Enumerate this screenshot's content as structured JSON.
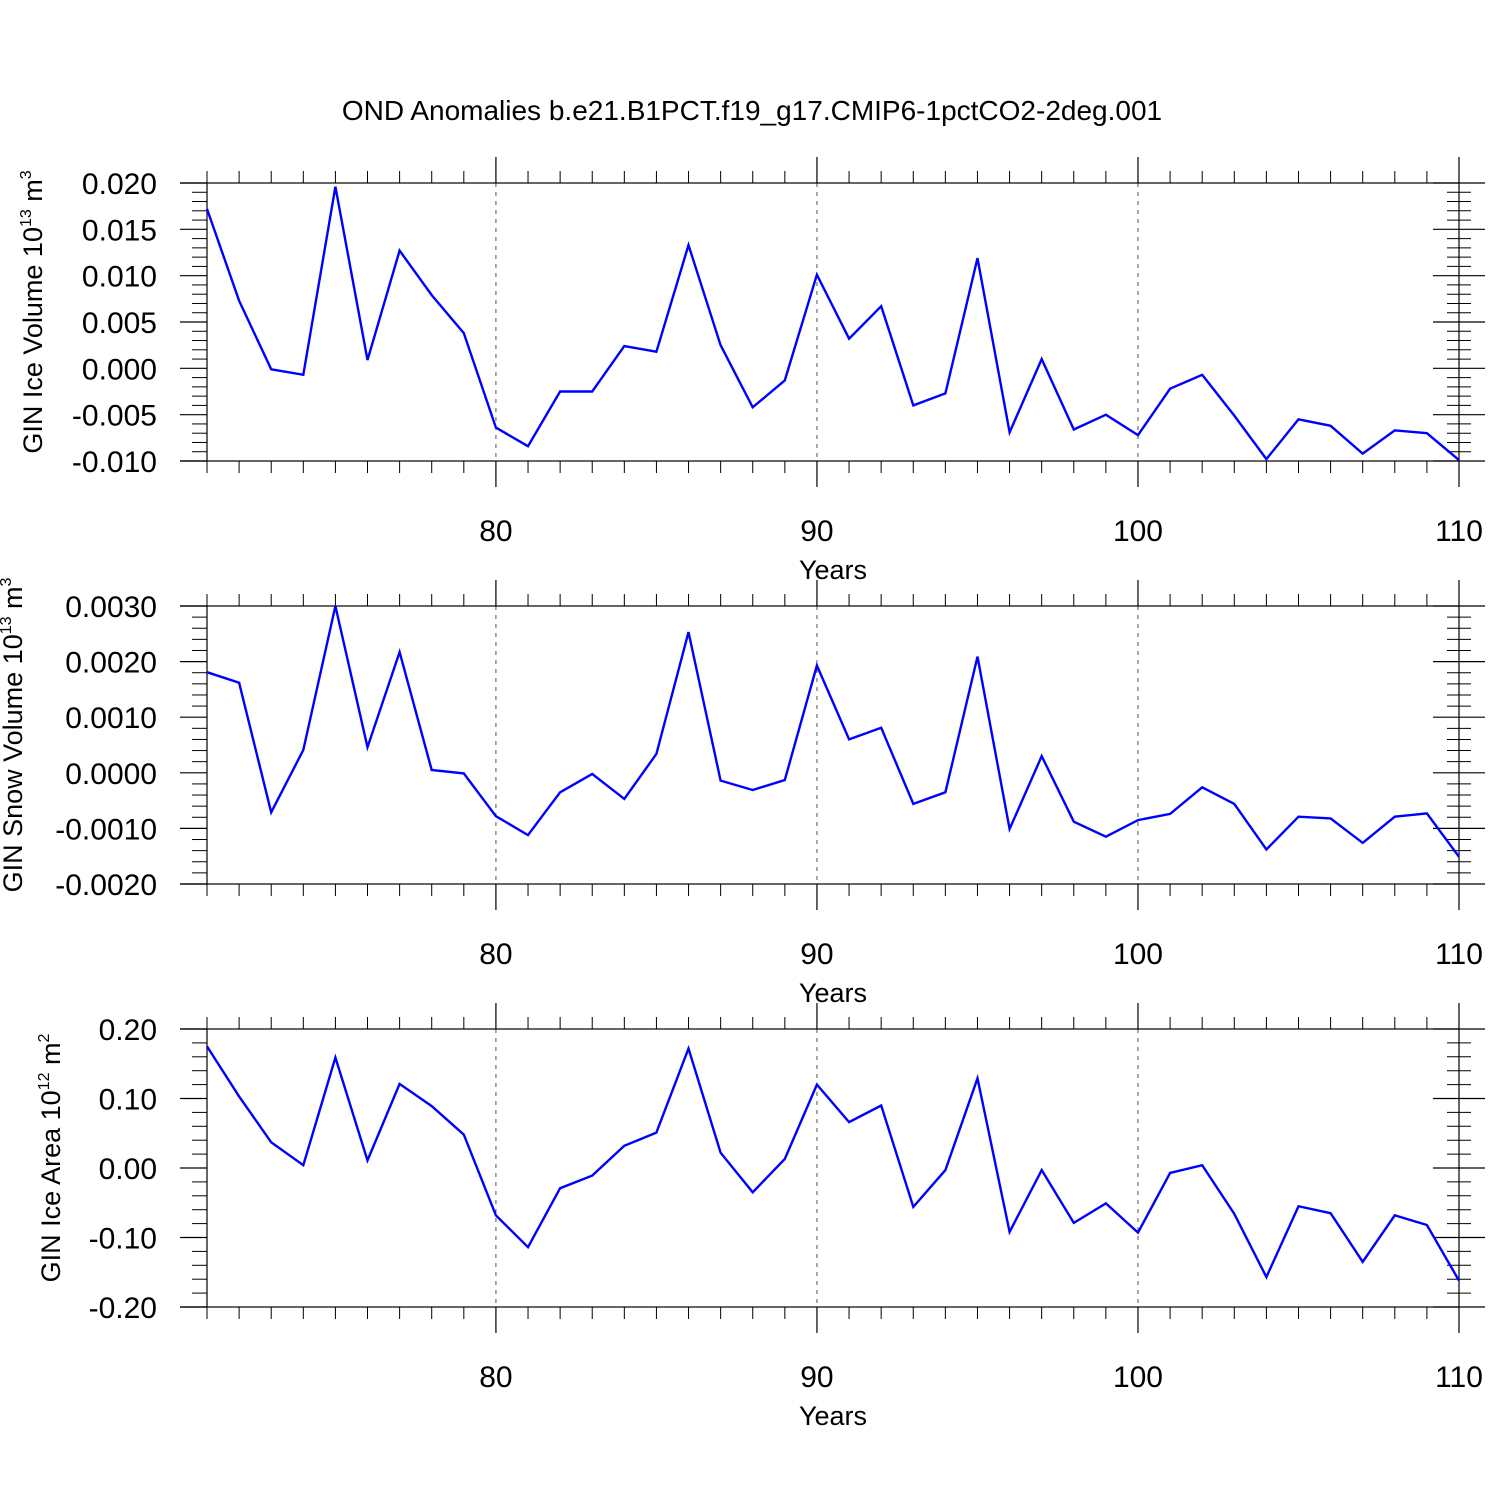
{
  "title": "OND Anomalies b.e21.B1PCT.f19_g17.CMIP6-1pctCO2-2deg.001",
  "colors": {
    "series": "#0000ff",
    "axes": "#000000",
    "background": "#ffffff"
  },
  "chart_data": [
    {
      "type": "line",
      "ylabel": {
        "text": "GIN Ice Volume 10",
        "sup1": "13",
        "unit": " m",
        "sup2": "3"
      },
      "xlabel": "Years",
      "xlim": [
        71,
        110
      ],
      "ylim": [
        -0.01,
        0.02
      ],
      "yticks": [
        -0.01,
        -0.005,
        0.0,
        0.005,
        0.01,
        0.015,
        0.02
      ],
      "ytick_labels": [
        "-0.010",
        "-0.005",
        "0.000",
        "0.005",
        "0.010",
        "0.015",
        "0.020"
      ],
      "xticks": [
        80,
        90,
        100,
        110
      ],
      "xtick_labels": [
        "80",
        "90",
        "100",
        "110"
      ],
      "grid": "dashed vertical lines at major x ticks",
      "x": [
        71,
        72,
        73,
        74,
        75,
        76,
        77,
        78,
        79,
        80,
        81,
        82,
        83,
        84,
        85,
        86,
        87,
        88,
        89,
        90,
        91,
        92,
        93,
        94,
        95,
        96,
        97,
        98,
        99,
        100,
        101,
        102,
        103,
        104,
        105,
        106,
        107,
        108,
        109,
        110
      ],
      "values": [
        0.0172,
        0.0073,
        -0.0001,
        -0.0007,
        0.0196,
        0.0009,
        0.0127,
        0.0079,
        0.0038,
        -0.0064,
        -0.0084,
        -0.0025,
        -0.0025,
        0.0024,
        0.0018,
        0.0133,
        0.0025,
        -0.0042,
        -0.0013,
        0.0101,
        0.0032,
        0.0067,
        -0.004,
        -0.0027,
        0.0119,
        -0.0069,
        0.001,
        -0.0066,
        -0.005,
        -0.0072,
        -0.0022,
        -0.0007,
        -0.0051,
        -0.0098,
        -0.0055,
        -0.0062,
        -0.0092,
        -0.0067,
        -0.007,
        -0.0099
      ]
    },
    {
      "type": "line",
      "ylabel": {
        "text": "GIN Snow Volume 10",
        "sup1": "13",
        "unit": " m",
        "sup2": "3"
      },
      "xlabel": "Years",
      "xlim": [
        71,
        110
      ],
      "ylim": [
        -0.002,
        0.003
      ],
      "yticks": [
        -0.002,
        -0.001,
        0.0,
        0.001,
        0.002,
        0.003
      ],
      "ytick_labels": [
        "-0.0020",
        "-0.0010",
        "0.0000",
        "0.0010",
        "0.0020",
        "0.0030"
      ],
      "xticks": [
        80,
        90,
        100,
        110
      ],
      "xtick_labels": [
        "80",
        "90",
        "100",
        "110"
      ],
      "grid": "dashed vertical lines at major x ticks",
      "x": [
        71,
        72,
        73,
        74,
        75,
        76,
        77,
        78,
        79,
        80,
        81,
        82,
        83,
        84,
        85,
        86,
        87,
        88,
        89,
        90,
        91,
        92,
        93,
        94,
        95,
        96,
        97,
        98,
        99,
        100,
        101,
        102,
        103,
        104,
        105,
        106,
        107,
        108,
        109,
        110
      ],
      "values": [
        0.00181,
        0.00162,
        -0.00071,
        0.00041,
        0.003,
        0.00046,
        0.00217,
        5e-05,
        -1e-05,
        -0.00078,
        -0.00112,
        -0.00035,
        -2e-05,
        -0.00047,
        0.00034,
        0.00253,
        -0.00014,
        -0.00031,
        -0.00013,
        0.00193,
        0.0006,
        0.00081,
        -0.00056,
        -0.00035,
        0.00209,
        -0.00101,
        0.0003,
        -0.00088,
        -0.00115,
        -0.00085,
        -0.00074,
        -0.00026,
        -0.00056,
        -0.00138,
        -0.00079,
        -0.00082,
        -0.00126,
        -0.00079,
        -0.00073,
        -0.00151
      ]
    },
    {
      "type": "line",
      "ylabel": {
        "text": "GIN Ice Area 10",
        "sup1": "12",
        "unit": " m",
        "sup2": "2"
      },
      "xlabel": "Years",
      "xlim": [
        71,
        110
      ],
      "ylim": [
        -0.2,
        0.2
      ],
      "yticks": [
        -0.2,
        -0.1,
        0.0,
        0.1,
        0.2
      ],
      "ytick_labels": [
        "-0.20",
        "-0.10",
        "0.00",
        "0.10",
        "0.20"
      ],
      "xticks": [
        80,
        90,
        100,
        110
      ],
      "xtick_labels": [
        "80",
        "90",
        "100",
        "110"
      ],
      "grid": "dashed vertical lines at major x ticks",
      "x": [
        71,
        72,
        73,
        74,
        75,
        76,
        77,
        78,
        79,
        80,
        81,
        82,
        83,
        84,
        85,
        86,
        87,
        88,
        89,
        90,
        91,
        92,
        93,
        94,
        95,
        96,
        97,
        98,
        99,
        100,
        101,
        102,
        103,
        104,
        105,
        106,
        107,
        108,
        109,
        110
      ],
      "values": [
        0.175,
        0.103,
        0.037,
        0.004,
        0.159,
        0.011,
        0.121,
        0.089,
        0.048,
        -0.068,
        -0.114,
        -0.029,
        -0.011,
        0.032,
        0.051,
        0.172,
        0.022,
        -0.035,
        0.013,
        0.12,
        0.066,
        0.09,
        -0.056,
        -0.003,
        0.129,
        -0.092,
        -0.003,
        -0.079,
        -0.051,
        -0.093,
        -0.007,
        0.004,
        -0.066,
        -0.157,
        -0.055,
        -0.065,
        -0.135,
        -0.068,
        -0.082,
        -0.162
      ]
    }
  ]
}
